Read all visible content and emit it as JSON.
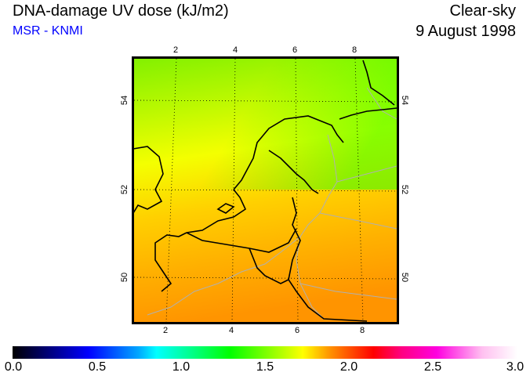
{
  "header": {
    "title": "DNA-damage UV dose (kJ/m2)",
    "credit": "MSR - KNMI",
    "condition": "Clear-sky",
    "date": "9 August 1998"
  },
  "map": {
    "lon_ticks_top": [
      "2",
      "4",
      "6",
      "8"
    ],
    "lon_ticks_bottom": [
      "2",
      "4",
      "6",
      "8"
    ],
    "lat_ticks_left": [
      "54",
      "52",
      "50"
    ],
    "lat_ticks_right": [
      "54",
      "52",
      "50"
    ]
  },
  "colorbar": {
    "labels": [
      "0.0",
      "0.5",
      "1.0",
      "1.5",
      "2.0",
      "2.5",
      "3.0"
    ],
    "range": [
      0.0,
      3.0
    ],
    "unit": "kJ/m2"
  }
}
